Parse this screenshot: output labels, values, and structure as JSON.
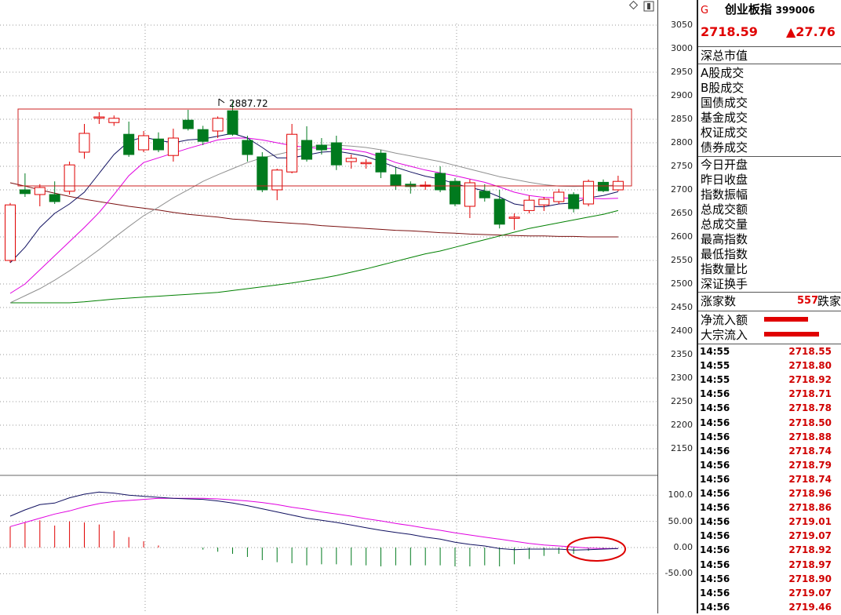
{
  "header": {
    "flag": "G",
    "name": "创业板指",
    "code": "399006",
    "price": "2718.59",
    "change": "▲27.76"
  },
  "panel": {
    "market_value_label": "深总市值",
    "trade_labels": [
      "A股成交",
      "B股成交",
      "国债成交",
      "基金成交",
      "权证成交",
      "债券成交"
    ],
    "stat_labels": [
      "今日开盘",
      "昨日收盘",
      "指数振幅",
      "总成交额",
      "总成交量",
      "最高指数",
      "最低指数",
      "指数量比",
      "深证换手"
    ],
    "rise_label": "涨家数",
    "rise_count": "557",
    "fall_label": "跌家",
    "flow_labels": [
      "净流入额",
      "大宗流入"
    ]
  },
  "ticks": [
    {
      "t": "14:55",
      "p": "2718.55"
    },
    {
      "t": "14:55",
      "p": "2718.80"
    },
    {
      "t": "14:55",
      "p": "2718.92"
    },
    {
      "t": "14:56",
      "p": "2718.71"
    },
    {
      "t": "14:56",
      "p": "2718.78"
    },
    {
      "t": "14:56",
      "p": "2718.50"
    },
    {
      "t": "14:56",
      "p": "2718.88"
    },
    {
      "t": "14:56",
      "p": "2718.74"
    },
    {
      "t": "14:56",
      "p": "2718.79"
    },
    {
      "t": "14:56",
      "p": "2718.74"
    },
    {
      "t": "14:56",
      "p": "2718.96"
    },
    {
      "t": "14:56",
      "p": "2718.86"
    },
    {
      "t": "14:56",
      "p": "2719.01"
    },
    {
      "t": "14:56",
      "p": "2719.07"
    },
    {
      "t": "14:56",
      "p": "2718.92"
    },
    {
      "t": "14:56",
      "p": "2718.97"
    },
    {
      "t": "14:56",
      "p": "2718.90"
    },
    {
      "t": "14:56",
      "p": "2719.07"
    },
    {
      "t": "14:56",
      "p": "2719.46"
    }
  ],
  "colors": {
    "up": "#e00000",
    "down": "#007a1e",
    "ma5": "#101060",
    "ma10": "#e000e0",
    "ma20": "#909090",
    "ma60": "#008000",
    "ma120": "#7a1010"
  },
  "chart_data": {
    "type": "candlestick",
    "price_axis": [
      3050,
      3000,
      2950,
      2900,
      2850,
      2800,
      2750,
      2700,
      2650,
      2600,
      2550,
      2500,
      2450,
      2400,
      2350,
      2300,
      2250,
      2200,
      2150
    ],
    "macd_axis": [
      "100.0",
      "50.00",
      "0.00",
      "-50.00"
    ],
    "high_label": "2887.72",
    "candles": [
      [
        2550,
        2668,
        2545,
        2672
      ],
      [
        2700,
        2692,
        2685,
        2735
      ],
      [
        2690,
        2705,
        2665,
        2712
      ],
      [
        2690,
        2675,
        2670,
        2718
      ],
      [
        2697,
        2753,
        2690,
        2760
      ],
      [
        2780,
        2820,
        2766,
        2840
      ],
      [
        2853,
        2855,
        2840,
        2865
      ],
      [
        2843,
        2852,
        2836,
        2858
      ],
      [
        2818,
        2775,
        2770,
        2845
      ],
      [
        2785,
        2815,
        2780,
        2825
      ],
      [
        2808,
        2785,
        2780,
        2822
      ],
      [
        2773,
        2810,
        2760,
        2830
      ],
      [
        2848,
        2830,
        2826,
        2870
      ],
      [
        2828,
        2803,
        2795,
        2836
      ],
      [
        2825,
        2852,
        2810,
        2856
      ],
      [
        2868,
        2818,
        2815,
        2887.72
      ],
      [
        2805,
        2775,
        2760,
        2815
      ],
      [
        2770,
        2700,
        2695,
        2780
      ],
      [
        2700,
        2742,
        2678,
        2745
      ],
      [
        2738,
        2818,
        2735,
        2840
      ],
      [
        2805,
        2765,
        2760,
        2835
      ],
      [
        2795,
        2785,
        2775,
        2810
      ],
      [
        2800,
        2753,
        2742,
        2815
      ],
      [
        2760,
        2767,
        2745,
        2775
      ],
      [
        2758,
        2758,
        2745,
        2765
      ],
      [
        2778,
        2738,
        2725,
        2785
      ],
      [
        2732,
        2710,
        2700,
        2748
      ],
      [
        2712,
        2707,
        2692,
        2718
      ],
      [
        2710,
        2710,
        2700,
        2718
      ],
      [
        2735,
        2700,
        2695,
        2750
      ],
      [
        2718,
        2670,
        2665,
        2725
      ],
      [
        2665,
        2715,
        2640,
        2722
      ],
      [
        2697,
        2683,
        2675,
        2712
      ],
      [
        2680,
        2627,
        2618,
        2700
      ],
      [
        2640,
        2642,
        2615,
        2650
      ],
      [
        2656,
        2678,
        2650,
        2688
      ],
      [
        2668,
        2680,
        2655,
        2685
      ],
      [
        2675,
        2695,
        2670,
        2702
      ],
      [
        2690,
        2660,
        2652,
        2695
      ],
      [
        2670,
        2718,
        2665,
        2722
      ],
      [
        2716,
        2698,
        2695,
        2722
      ],
      [
        2700,
        2718,
        2697,
        2730
      ]
    ],
    "ma5": [
      2545,
      2578,
      2620,
      2650,
      2670,
      2695,
      2735,
      2775,
      2803,
      2812,
      2805,
      2800,
      2806,
      2808,
      2814,
      2820,
      2810,
      2790,
      2768,
      2768,
      2774,
      2780,
      2782,
      2777,
      2771,
      2760,
      2748,
      2738,
      2729,
      2723,
      2713,
      2705,
      2698,
      2685,
      2670,
      2665,
      2664,
      2670,
      2672,
      2683,
      2688,
      2696
    ],
    "ma10": [
      2480,
      2500,
      2530,
      2560,
      2590,
      2620,
      2652,
      2690,
      2730,
      2758,
      2768,
      2778,
      2788,
      2797,
      2806,
      2810,
      2810,
      2806,
      2800,
      2794,
      2790,
      2788,
      2788,
      2785,
      2780,
      2770,
      2758,
      2750,
      2742,
      2736,
      2730,
      2723,
      2716,
      2706,
      2695,
      2688,
      2684,
      2683,
      2682,
      2682,
      2681,
      2682
    ],
    "ma20": [
      2460,
      2475,
      2490,
      2508,
      2528,
      2550,
      2573,
      2598,
      2622,
      2645,
      2663,
      2683,
      2700,
      2718,
      2732,
      2745,
      2758,
      2768,
      2775,
      2782,
      2790,
      2795,
      2795,
      2793,
      2790,
      2785,
      2778,
      2772,
      2766,
      2760,
      2752,
      2744,
      2736,
      2728,
      2722,
      2716,
      2711,
      2708,
      2707,
      2708,
      2709,
      2710
    ],
    "ma60": [
      2460,
      2460,
      2460,
      2460,
      2460,
      2462,
      2465,
      2468,
      2470,
      2472,
      2474,
      2476,
      2478,
      2480,
      2482,
      2486,
      2490,
      2494,
      2498,
      2502,
      2507,
      2512,
      2518,
      2525,
      2532,
      2540,
      2548,
      2556,
      2564,
      2570,
      2578,
      2586,
      2594,
      2602,
      2610,
      2618,
      2624,
      2630,
      2636,
      2642,
      2648,
      2656
    ],
    "ma120": [
      2715,
      2708,
      2700,
      2693,
      2686,
      2680,
      2675,
      2670,
      2665,
      2661,
      2657,
      2652,
      2648,
      2645,
      2642,
      2638,
      2636,
      2633,
      2631,
      2629,
      2627,
      2624,
      2622,
      2620,
      2618,
      2616,
      2614,
      2613,
      2611,
      2609,
      2608,
      2606,
      2605,
      2604,
      2603,
      2602,
      2602,
      2601,
      2601,
      2600,
      2600,
      2600
    ],
    "dif": [
      60,
      72,
      82,
      85,
      95,
      102,
      106,
      104,
      100,
      98,
      96,
      94,
      93,
      92,
      89,
      85,
      80,
      74,
      68,
      62,
      56,
      52,
      48,
      43,
      38,
      33,
      29,
      25,
      20,
      16,
      10,
      6,
      3,
      -2,
      -4,
      -3,
      -3,
      -3,
      -5,
      -4,
      -3,
      -2
    ],
    "dea": [
      40,
      48,
      56,
      64,
      70,
      78,
      84,
      88,
      90,
      92,
      94,
      94,
      94,
      94,
      93,
      91,
      89,
      86,
      82,
      77,
      73,
      68,
      64,
      60,
      55,
      51,
      46,
      42,
      37,
      33,
      28,
      24,
      20,
      16,
      12,
      8,
      5,
      3,
      1,
      -1,
      -2,
      -2
    ],
    "macd": [
      40,
      48,
      52,
      42,
      50,
      48,
      44,
      32,
      20,
      12,
      4,
      0,
      0,
      -4,
      -8,
      -12,
      -18,
      -24,
      -28,
      -30,
      -34,
      -32,
      -32,
      -34,
      -34,
      -36,
      -34,
      -34,
      -34,
      -34,
      -36,
      -36,
      -34,
      -36,
      -32,
      -22,
      -16,
      -12,
      -12,
      -6,
      -2,
      0
    ]
  }
}
